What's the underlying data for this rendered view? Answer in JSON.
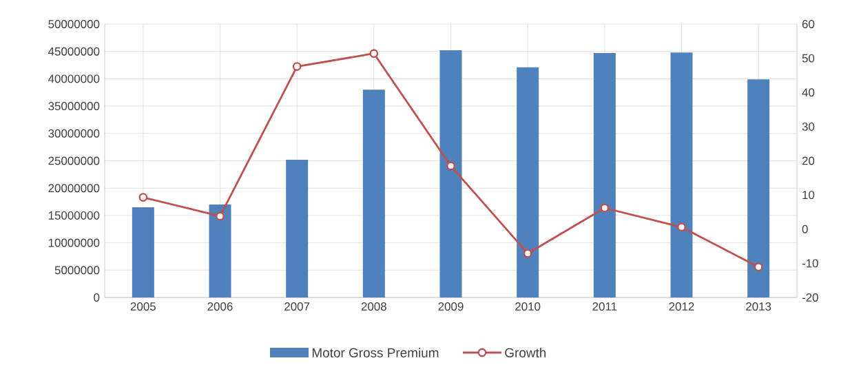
{
  "chart_data": {
    "type": "bar",
    "categories": [
      "2005",
      "2006",
      "2007",
      "2008",
      "2009",
      "2010",
      "2011",
      "2012",
      "2013"
    ],
    "series": [
      {
        "name": "Motor Gross Premium",
        "color": "#4f81bd",
        "values": [
          16500000,
          17000000,
          25200000,
          38000000,
          45200000,
          42100000,
          44700000,
          44800000,
          39900000
        ]
      },
      {
        "name": "Growth",
        "type": "line",
        "axis": "y2",
        "color": "#c0504d",
        "values": [
          9.3,
          3.8,
          47.6,
          51.4,
          18.5,
          -7.1,
          6.2,
          0.6,
          -11.1
        ]
      }
    ],
    "ylim": [
      0,
      50000000
    ],
    "yticks": [
      0,
      5000000,
      10000000,
      15000000,
      20000000,
      25000000,
      30000000,
      35000000,
      40000000,
      45000000,
      50000000
    ],
    "y2lim": [
      -20,
      60
    ],
    "y2ticks": [
      -20,
      -10,
      0,
      10,
      20,
      30,
      40,
      50,
      60
    ],
    "grid": true,
    "legend": "bottom",
    "marker": "circle",
    "line_style": "solid"
  }
}
